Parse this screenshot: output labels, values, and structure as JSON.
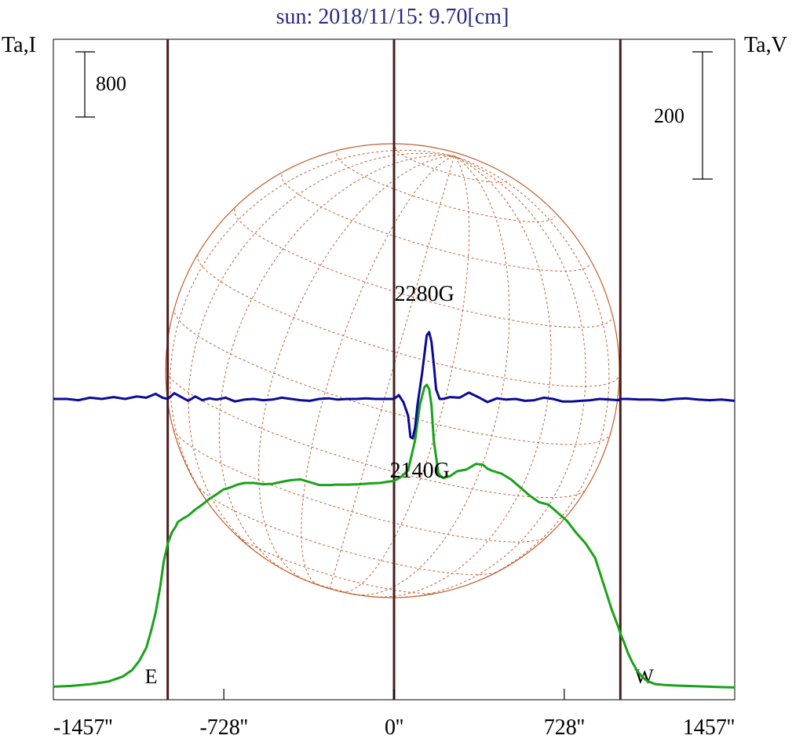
{
  "chart_data": {
    "type": "line",
    "title": "sun: 2018/11/15: 9.70[cm]",
    "left_axis_label": "Ta,I",
    "right_axis_label": "Ta,V",
    "left_scale_label": "800",
    "right_scale_label": "200",
    "x_ticks": [
      {
        "value": -1457,
        "label": "-1457''"
      },
      {
        "value": -728,
        "label": "-728''"
      },
      {
        "value": 0,
        "label": "0''"
      },
      {
        "value": 728,
        "label": "728''"
      },
      {
        "value": 1457,
        "label": "1457''"
      }
    ],
    "xlim": [
      -1457,
      1457
    ],
    "limb_lines": [
      {
        "x": -968,
        "label": "E"
      },
      {
        "x": 0,
        "label": ""
      },
      {
        "x": 968,
        "label": "W"
      }
    ],
    "annotations": [
      {
        "text": "2280G",
        "x": 130
      },
      {
        "text": "2140G",
        "x": 110
      }
    ],
    "colors": {
      "title": "#2a2a80",
      "intensity": "#1aa21a",
      "polarization": "#0a0a96",
      "limb_lines": "#4a1c1c",
      "disk": "#c06030",
      "frame": "#000000"
    },
    "series": [
      {
        "name": "I",
        "axis": "left",
        "x": [
          -1457,
          -1380,
          -1300,
          -1220,
          -1160,
          -1120,
          -1090,
          -1060,
          -1040,
          -1020,
          -1000,
          -985,
          -968,
          -950,
          -935,
          -925,
          -905,
          -880,
          -850,
          -820,
          -790,
          -760,
          -730,
          -700,
          -670,
          -640,
          -600,
          -560,
          -520,
          -480,
          -440,
          -400,
          -360,
          -320,
          -290,
          -270,
          -250,
          -200,
          -150,
          -100,
          -60,
          -30,
          0,
          30,
          60,
          90,
          110,
          130,
          140,
          150,
          160,
          170,
          190,
          210,
          240,
          270,
          310,
          350,
          380,
          400,
          420,
          460,
          500,
          540,
          580,
          620,
          660,
          700,
          740,
          780,
          820,
          860,
          900,
          930,
          960,
          968,
          985,
          1000,
          1020,
          1040,
          1060,
          1080,
          1100,
          1120,
          1160,
          1220,
          1300,
          1380,
          1457
        ],
        "values": [
          25,
          35,
          55,
          90,
          150,
          230,
          340,
          500,
          700,
          930,
          1250,
          1560,
          1780,
          1920,
          1985,
          2045,
          2085,
          2125,
          2200,
          2260,
          2330,
          2385,
          2445,
          2470,
          2505,
          2525,
          2525,
          2510,
          2515,
          2540,
          2560,
          2570,
          2535,
          2500,
          2500,
          2500,
          2505,
          2505,
          2510,
          2520,
          2525,
          2540,
          2550,
          2600,
          2680,
          3050,
          3480,
          3700,
          3730,
          3680,
          3480,
          3050,
          2640,
          2585,
          2610,
          2670,
          2690,
          2760,
          2750,
          2700,
          2675,
          2640,
          2570,
          2470,
          2370,
          2290,
          2260,
          2160,
          2060,
          1910,
          1780,
          1605,
          1250,
          980,
          750,
          680,
          560,
          440,
          320,
          220,
          150,
          100,
          75,
          55,
          45,
          38,
          30,
          22,
          15
        ]
      },
      {
        "name": "V",
        "axis": "right",
        "x": [
          -1457,
          -1400,
          -1350,
          -1300,
          -1250,
          -1200,
          -1150,
          -1100,
          -1060,
          -1020,
          -990,
          -968,
          -940,
          -910,
          -880,
          -850,
          -820,
          -790,
          -760,
          -720,
          -680,
          -640,
          -600,
          -560,
          -520,
          -480,
          -440,
          -400,
          -360,
          -320,
          -280,
          -240,
          -200,
          -160,
          -120,
          -80,
          -40,
          0,
          20,
          40,
          60,
          70,
          80,
          90,
          100,
          120,
          140,
          150,
          160,
          170,
          180,
          195,
          210,
          240,
          280,
          320,
          360,
          400,
          440,
          480,
          520,
          560,
          600,
          640,
          680,
          720,
          760,
          800,
          840,
          880,
          920,
          960,
          968,
          1000,
          1050,
          1100,
          1150,
          1200,
          1250,
          1300,
          1350,
          1400,
          1457
        ],
        "values": [
          0,
          0,
          -2,
          2,
          0,
          3,
          0,
          4,
          2,
          8,
          2,
          0,
          9,
          3,
          -3,
          4,
          -2,
          1,
          -1,
          2,
          -4,
          -1,
          0,
          -2,
          -1,
          2,
          0,
          -2,
          -3,
          0,
          1,
          -1,
          0,
          0,
          1,
          0,
          0,
          0,
          6,
          -5,
          -26,
          -60,
          -62,
          -45,
          -10,
          40,
          100,
          105,
          90,
          55,
          15,
          0,
          0,
          3,
          2,
          10,
          3,
          -5,
          1,
          -1,
          0,
          -3,
          -2,
          2,
          0,
          -4,
          -4,
          -3,
          -2,
          0,
          -1,
          -2,
          0,
          0,
          -1,
          -1,
          -2,
          0,
          1,
          -1,
          -2,
          -1,
          -3
        ]
      }
    ]
  }
}
